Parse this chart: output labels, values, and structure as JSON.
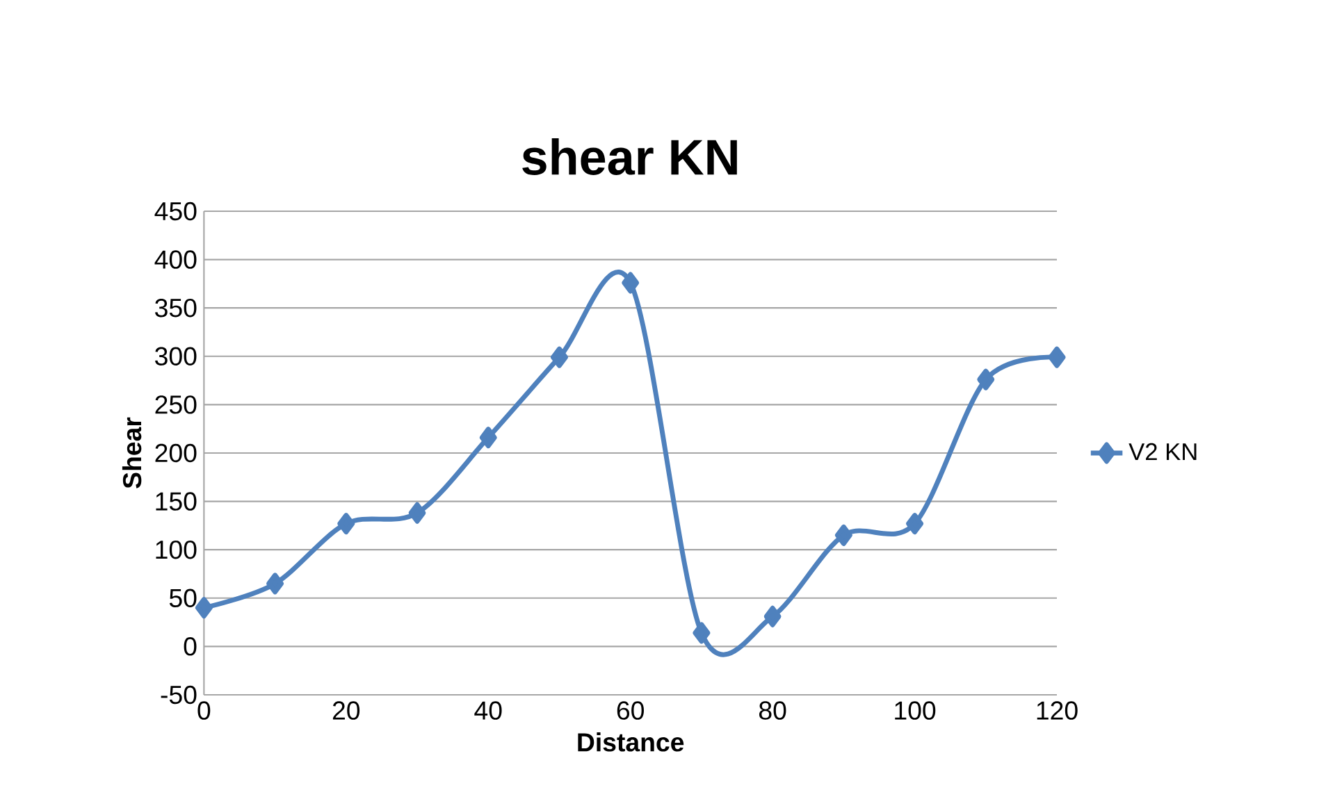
{
  "chart_data": {
    "type": "line",
    "title": "shear KN",
    "xlabel": "Distance",
    "ylabel": "Shear",
    "x": [
      0,
      10,
      20,
      30,
      40,
      50,
      60,
      70,
      80,
      90,
      100,
      110,
      120
    ],
    "series": [
      {
        "name": "V2 KN",
        "color": "#4f81bd",
        "values": [
          40,
          65,
          127,
          138,
          216,
          299,
          376,
          14,
          31,
          115,
          127,
          276,
          299
        ]
      }
    ],
    "xlim": [
      0,
      120
    ],
    "xticks": [
      0,
      20,
      40,
      60,
      80,
      100,
      120
    ],
    "ylim": [
      -50,
      450
    ],
    "yticks": [
      -50,
      0,
      50,
      100,
      150,
      200,
      250,
      300,
      350,
      400,
      450
    ],
    "grid": "y",
    "legend": "right",
    "marker": "diamond",
    "line_style": "solid"
  }
}
